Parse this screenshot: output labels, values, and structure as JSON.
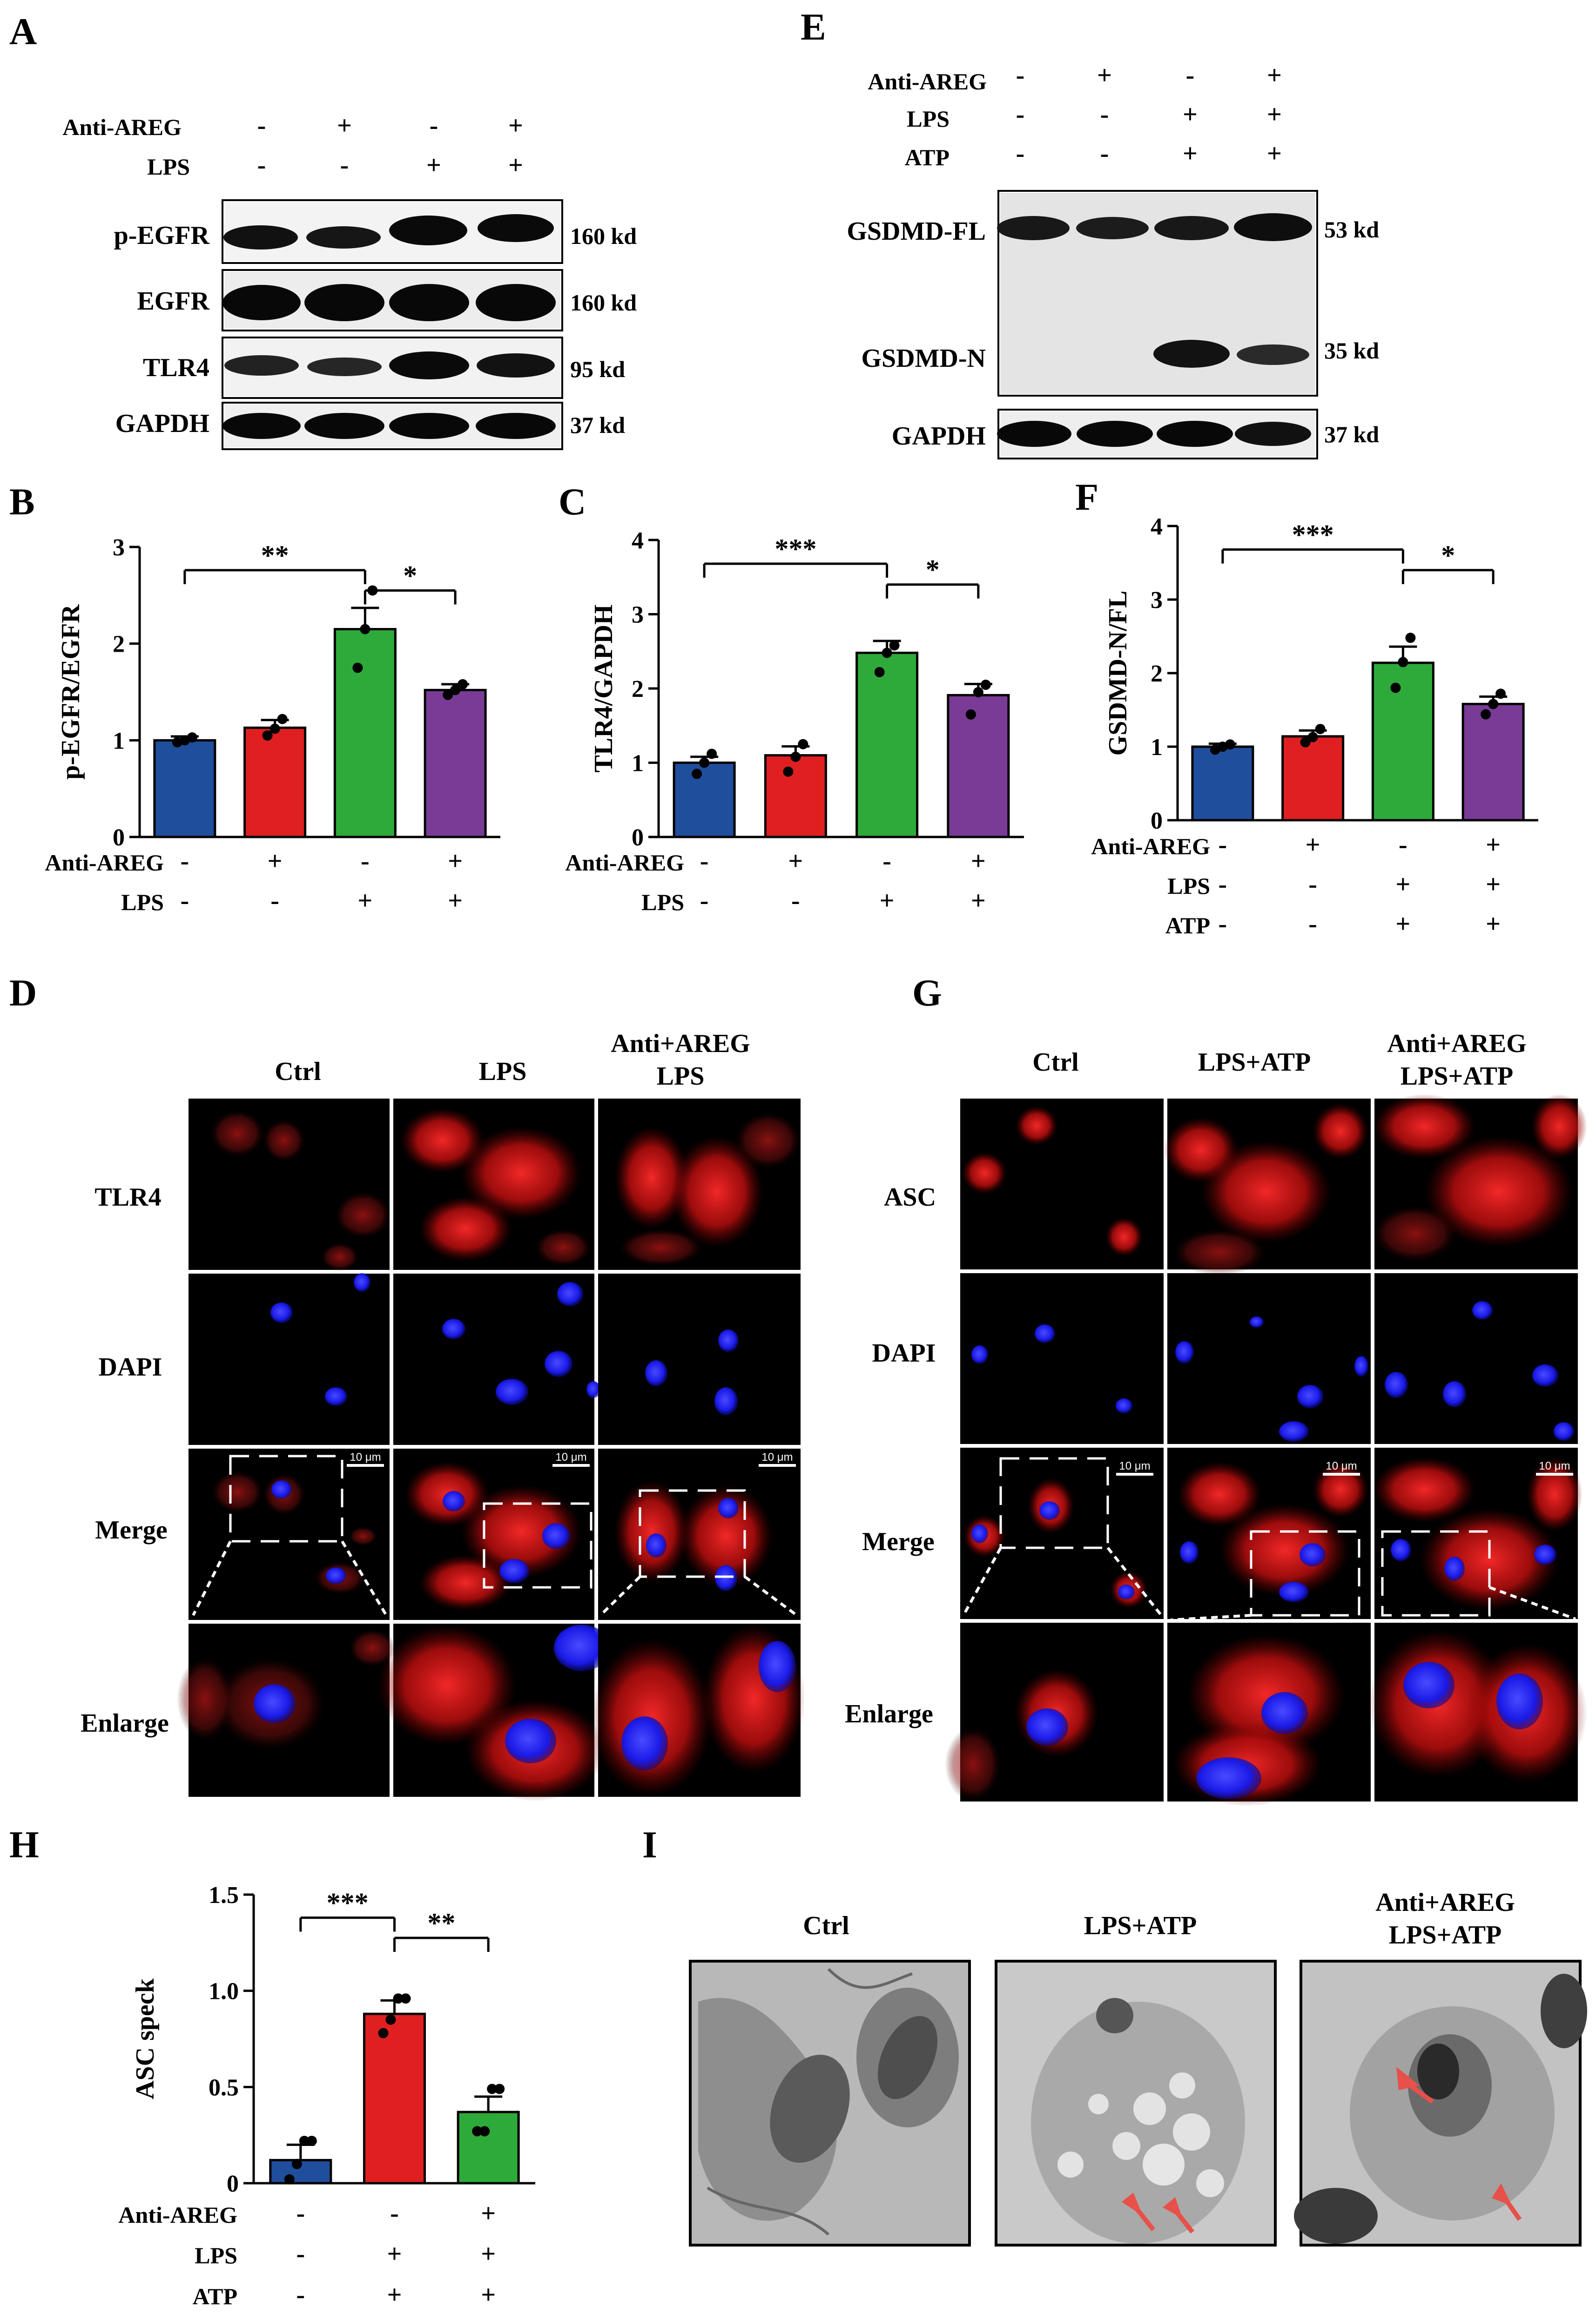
{
  "panel_letters": {
    "A": "A",
    "B": "B",
    "C": "C",
    "D": "D",
    "E": "E",
    "F": "F",
    "G": "G",
    "H": "H",
    "I": "I"
  },
  "panel_a": {
    "conditions": [
      {
        "label": "Anti-AREG",
        "signs": [
          "-",
          "+",
          "-",
          "+"
        ]
      },
      {
        "label": "LPS",
        "signs": [
          "-",
          "-",
          "+",
          "+"
        ]
      }
    ],
    "blots": [
      {
        "name": "p-EGFR",
        "size": "160 kd"
      },
      {
        "name": "EGFR",
        "size": "160 kd"
      },
      {
        "name": "TLR4",
        "size": "95 kd"
      },
      {
        "name": "GAPDH",
        "size": "37 kd"
      }
    ]
  },
  "panel_e": {
    "conditions": [
      {
        "label": "Anti-AREG",
        "signs": [
          "-",
          "+",
          "-",
          "+"
        ]
      },
      {
        "label": "LPS",
        "signs": [
          "-",
          "-",
          "+",
          "+"
        ]
      },
      {
        "label": "ATP",
        "signs": [
          "-",
          "-",
          "+",
          "+"
        ]
      }
    ],
    "blots": [
      {
        "name": "GSDMD-FL",
        "size": "53 kd"
      },
      {
        "name": "GSDMD-N",
        "size": "35 kd"
      },
      {
        "name": "GAPDH",
        "size": "37 kd"
      }
    ]
  },
  "panel_d": {
    "columns": [
      "Ctrl",
      "LPS",
      "Anti+AREG",
      "LPS"
    ],
    "rows": [
      "TLR4",
      "DAPI",
      "Merge",
      "Enlarge"
    ],
    "scale_bar": "10 μm"
  },
  "panel_g": {
    "columns": [
      "Ctrl",
      "LPS+ATP",
      "Anti+AREG",
      "LPS+ATP"
    ],
    "rows": [
      "ASC",
      "DAPI",
      "Merge",
      "Enlarge"
    ],
    "scale_bar": "10 μm"
  },
  "panel_i": {
    "columns": [
      "Ctrl",
      "LPS+ATP",
      "Anti+AREG",
      "LPS+ATP"
    ]
  },
  "colors": {
    "ctrl": "#1f4e9c",
    "anti": "#e02020",
    "lps": "#2eaa3a",
    "combo": "#7a3b96",
    "fluor_red": "#e41010",
    "fluor_blue": "#1a1aff"
  },
  "chart_data": [
    {
      "panel": "B",
      "type": "bar",
      "ylabel": "p-EGFR/EGFR",
      "ylim": [
        0,
        3
      ],
      "yticks": [
        "0",
        "1",
        "2",
        "3"
      ],
      "categories": [
        "Ctrl",
        "Anti-AREG",
        "LPS",
        "Anti-AREG+LPS"
      ],
      "values": [
        1.0,
        1.13,
        2.15,
        1.52
      ],
      "errors": [
        0.04,
        0.08,
        0.22,
        0.06
      ],
      "points": [
        [
          0.98,
          1.0,
          1.03
        ],
        [
          1.05,
          1.12,
          1.22
        ],
        [
          1.75,
          2.15,
          2.55
        ],
        [
          1.47,
          1.52,
          1.58
        ]
      ],
      "conditions": [
        {
          "label": "Anti-AREG",
          "signs": [
            "-",
            "+",
            "-",
            "+"
          ]
        },
        {
          "label": "LPS",
          "signs": [
            "-",
            "-",
            "+",
            "+"
          ]
        }
      ],
      "significance": [
        {
          "from": 0,
          "to": 2,
          "label": "**"
        },
        {
          "from": 2,
          "to": 3,
          "label": "*"
        }
      ]
    },
    {
      "panel": "C",
      "type": "bar",
      "ylabel": "TLR4/GAPDH",
      "ylim": [
        0,
        4
      ],
      "yticks": [
        "0",
        "1",
        "2",
        "3",
        "4"
      ],
      "categories": [
        "Ctrl",
        "Anti-AREG",
        "LPS",
        "Anti-AREG+LPS"
      ],
      "values": [
        1.0,
        1.1,
        2.48,
        1.91
      ],
      "errors": [
        0.08,
        0.12,
        0.16,
        0.15
      ],
      "points": [
        [
          0.85,
          1.0,
          1.12
        ],
        [
          0.88,
          1.08,
          1.25
        ],
        [
          2.22,
          2.48,
          2.58
        ],
        [
          1.65,
          1.95,
          2.05
        ]
      ],
      "conditions": [
        {
          "label": "Anti-AREG",
          "signs": [
            "-",
            "+",
            "-",
            "+"
          ]
        },
        {
          "label": "LPS",
          "signs": [
            "-",
            "-",
            "+",
            "+"
          ]
        }
      ],
      "significance": [
        {
          "from": 0,
          "to": 2,
          "label": "***"
        },
        {
          "from": 2,
          "to": 3,
          "label": "*"
        }
      ]
    },
    {
      "panel": "F",
      "type": "bar",
      "ylabel": "GSDMD-N/FL",
      "ylim": [
        0,
        4
      ],
      "yticks": [
        "0",
        "1",
        "2",
        "3",
        "4"
      ],
      "categories": [
        "Ctrl",
        "Anti-AREG",
        "LPS+ATP",
        "Anti-AREG+LPS+ATP"
      ],
      "values": [
        1.0,
        1.14,
        2.14,
        1.58
      ],
      "errors": [
        0.04,
        0.08,
        0.22,
        0.1
      ],
      "points": [
        [
          0.96,
          1.0,
          1.03
        ],
        [
          1.06,
          1.13,
          1.24
        ],
        [
          1.8,
          2.15,
          2.48
        ],
        [
          1.44,
          1.58,
          1.72
        ]
      ],
      "conditions": [
        {
          "label": "Anti-AREG",
          "signs": [
            "-",
            "+",
            "-",
            "+"
          ]
        },
        {
          "label": "LPS",
          "signs": [
            "-",
            "-",
            "+",
            "+"
          ]
        },
        {
          "label": "ATP",
          "signs": [
            "-",
            "-",
            "+",
            "+"
          ]
        }
      ],
      "significance": [
        {
          "from": 0,
          "to": 2,
          "label": "***"
        },
        {
          "from": 2,
          "to": 3,
          "label": "*"
        }
      ]
    },
    {
      "panel": "H",
      "type": "bar",
      "ylabel": "ASC speck",
      "ylim": [
        0,
        1.5
      ],
      "yticks": [
        "0",
        "0.5",
        "1.0",
        "1.5"
      ],
      "categories": [
        "Ctrl",
        "LPS+ATP",
        "Anti-AREG+LPS+ATP"
      ],
      "values": [
        0.12,
        0.88,
        0.37
      ],
      "errors": [
        0.08,
        0.07,
        0.08
      ],
      "points": [
        [
          0.02,
          0.1,
          0.22,
          0.22
        ],
        [
          0.78,
          0.85,
          0.96,
          0.96
        ],
        [
          0.27,
          0.27,
          0.49,
          0.49
        ]
      ],
      "conditions": [
        {
          "label": "Anti-AREG",
          "signs": [
            "-",
            "-",
            "+"
          ]
        },
        {
          "label": "LPS",
          "signs": [
            "-",
            "+",
            "+"
          ]
        },
        {
          "label": "ATP",
          "signs": [
            "-",
            "+",
            "+"
          ]
        }
      ],
      "significance": [
        {
          "from": 0,
          "to": 1,
          "label": "***"
        },
        {
          "from": 1,
          "to": 2,
          "label": "**"
        }
      ]
    }
  ]
}
